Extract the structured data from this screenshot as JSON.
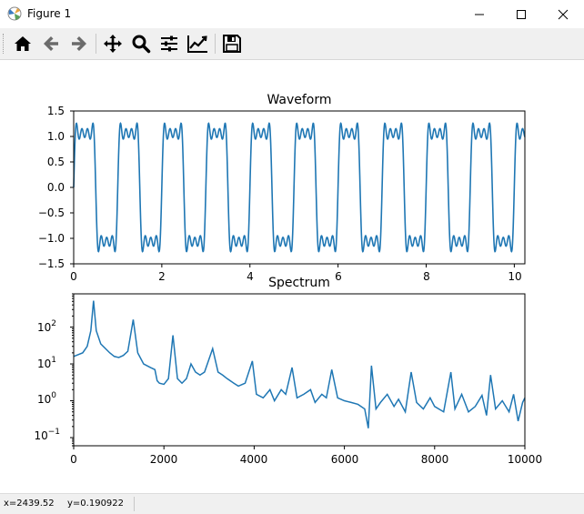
{
  "window": {
    "title": "Figure 1"
  },
  "toolbar": {
    "buttons": [
      {
        "name": "home",
        "icon": "home-icon"
      },
      {
        "name": "back",
        "icon": "arrow-left-icon"
      },
      {
        "name": "forward",
        "icon": "arrow-right-icon"
      },
      {
        "name": "pan",
        "icon": "move-icon"
      },
      {
        "name": "zoom",
        "icon": "magnifier-icon"
      },
      {
        "name": "subplots",
        "icon": "sliders-icon"
      },
      {
        "name": "edit-axes",
        "icon": "line-chart-icon"
      },
      {
        "name": "save",
        "icon": "floppy-icon"
      }
    ]
  },
  "status": {
    "x": "x=2439.52",
    "y": "y=0.190922"
  },
  "colors": {
    "line": "#1f77b4",
    "toolbar_bg": "#f0f0f0"
  },
  "chart_data": [
    {
      "type": "line",
      "title": "Waveform",
      "xlabel": "",
      "ylabel": "",
      "xlim": [
        0,
        10.24
      ],
      "ylim": [
        -1.5,
        1.5
      ],
      "xticks": [
        "0",
        "2",
        "4",
        "6",
        "8",
        "10"
      ],
      "yticks": [
        "1.5",
        "1.0",
        "0.5",
        "0.0",
        "−0.5",
        "−1.0",
        "−1.5"
      ],
      "series": [
        {
          "signal": "band-limited square wave (harmonics 1,3,5,7)",
          "period": 1.0,
          "amplitude_peak": 1.0,
          "duration": 10.24
        }
      ]
    },
    {
      "type": "line",
      "title": "Spectrum",
      "xlabel": "",
      "ylabel": "",
      "yscale": "log",
      "xlim": [
        0,
        10000
      ],
      "ylim": [
        0.06,
        800
      ],
      "xticks": [
        "0",
        "2000",
        "4000",
        "6000",
        "8000",
        "10000"
      ],
      "yticks": [
        "10^2",
        "10^1",
        "10^0",
        "10^-1"
      ],
      "peaks": [
        {
          "x": 440,
          "y": 520
        },
        {
          "x": 1320,
          "y": 160
        },
        {
          "x": 2200,
          "y": 60
        },
        {
          "x": 3080,
          "y": 26
        },
        {
          "x": 3960,
          "y": 12
        },
        {
          "x": 4840,
          "y": 8
        },
        {
          "x": 5720,
          "y": 7
        },
        {
          "x": 6600,
          "y": 9
        },
        {
          "x": 7480,
          "y": 6
        },
        {
          "x": 8360,
          "y": 6
        },
        {
          "x": 9240,
          "y": 5
        }
      ],
      "points": [
        [
          0,
          16
        ],
        [
          200,
          20
        ],
        [
          300,
          30
        ],
        [
          380,
          80
        ],
        [
          440,
          520
        ],
        [
          500,
          80
        ],
        [
          600,
          35
        ],
        [
          800,
          20
        ],
        [
          900,
          16
        ],
        [
          1000,
          15
        ],
        [
          1100,
          17
        ],
        [
          1200,
          22
        ],
        [
          1320,
          160
        ],
        [
          1420,
          20
        ],
        [
          1550,
          10
        ],
        [
          1700,
          8
        ],
        [
          1800,
          7
        ],
        [
          1850,
          3.5
        ],
        [
          1900,
          3
        ],
        [
          2000,
          2.8
        ],
        [
          2100,
          4
        ],
        [
          2200,
          60
        ],
        [
          2300,
          4
        ],
        [
          2400,
          3
        ],
        [
          2500,
          4
        ],
        [
          2600,
          10
        ],
        [
          2700,
          6
        ],
        [
          2800,
          5
        ],
        [
          2900,
          6
        ],
        [
          3080,
          26
        ],
        [
          3200,
          6
        ],
        [
          3300,
          5
        ],
        [
          3400,
          4
        ],
        [
          3550,
          3
        ],
        [
          3650,
          2.5
        ],
        [
          3800,
          3
        ],
        [
          3960,
          12
        ],
        [
          4050,
          1.5
        ],
        [
          4200,
          1.2
        ],
        [
          4350,
          2
        ],
        [
          4450,
          1
        ],
        [
          4600,
          2
        ],
        [
          4700,
          1.5
        ],
        [
          4840,
          8
        ],
        [
          4950,
          1.2
        ],
        [
          5100,
          1.5
        ],
        [
          5250,
          2
        ],
        [
          5350,
          0.9
        ],
        [
          5500,
          1.5
        ],
        [
          5600,
          1.2
        ],
        [
          5720,
          7
        ],
        [
          5850,
          1.2
        ],
        [
          6000,
          1
        ],
        [
          6150,
          0.9
        ],
        [
          6300,
          0.8
        ],
        [
          6450,
          0.6
        ],
        [
          6530,
          0.18
        ],
        [
          6600,
          9
        ],
        [
          6700,
          0.6
        ],
        [
          6800,
          0.9
        ],
        [
          6950,
          1.5
        ],
        [
          7100,
          0.7
        ],
        [
          7200,
          1.1
        ],
        [
          7350,
          0.5
        ],
        [
          7480,
          6
        ],
        [
          7600,
          0.9
        ],
        [
          7750,
          0.6
        ],
        [
          7900,
          1.2
        ],
        [
          8000,
          0.7
        ],
        [
          8200,
          0.5
        ],
        [
          8360,
          6
        ],
        [
          8450,
          0.6
        ],
        [
          8600,
          1.5
        ],
        [
          8750,
          0.5
        ],
        [
          8900,
          0.7
        ],
        [
          9050,
          1.4
        ],
        [
          9150,
          0.4
        ],
        [
          9240,
          5
        ],
        [
          9350,
          0.6
        ],
        [
          9500,
          1
        ],
        [
          9650,
          0.5
        ],
        [
          9750,
          1.5
        ],
        [
          9850,
          0.28
        ],
        [
          9950,
          0.9
        ],
        [
          10000,
          1.2
        ]
      ]
    }
  ]
}
